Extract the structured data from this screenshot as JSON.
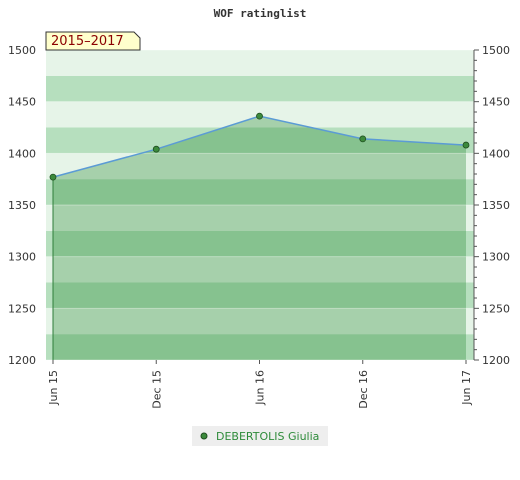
{
  "colors": {
    "line": "#5b9bd5",
    "marker": "#3c8a3c",
    "fill": "#2e8b3a",
    "band_light": "#e6f4e8",
    "band_mid": "#b6dfbe",
    "legend_text": "#2e8b3a",
    "badge_bg": "#ffffcc"
  },
  "chart_data": {
    "type": "line",
    "title": "WOF ratinglist",
    "badge": "2015–2017",
    "categories": [
      "Jun 15",
      "Dec 15",
      "Jun 16",
      "Dec 16",
      "Jun 17"
    ],
    "series": [
      {
        "name": "DEBERTOLIS Giulia",
        "values": [
          1377,
          1404,
          1436,
          1414,
          1408
        ]
      }
    ],
    "ylim": [
      1200,
      1500
    ],
    "yticks": [
      1200,
      1250,
      1300,
      1350,
      1400,
      1450,
      1500
    ],
    "y_axis_both_sides": true,
    "legend_position": "bottom-center",
    "grid": "horizontal bands"
  }
}
